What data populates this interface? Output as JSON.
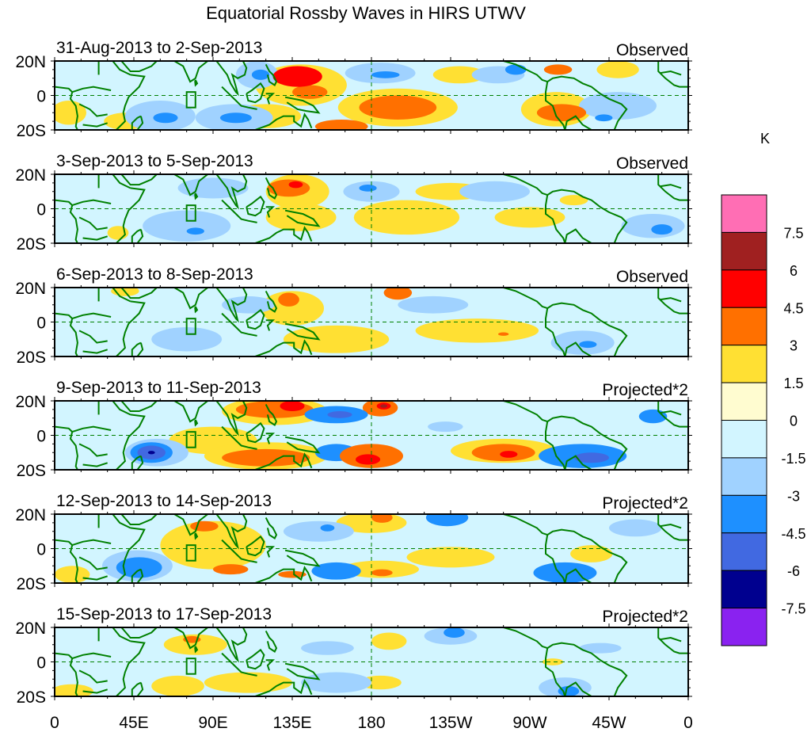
{
  "chart_data": {
    "type": "heatmap",
    "title": "Equatorial Rossby Waves in HIRS UTWV",
    "units_label": "K",
    "x_axis": {
      "range": [
        0,
        360
      ],
      "tick_values": [
        0,
        45,
        90,
        135,
        180,
        225,
        270,
        315,
        360
      ],
      "tick_labels": [
        "0",
        "45E",
        "90E",
        "135E",
        "180",
        "135W",
        "90W",
        "45W",
        "0"
      ]
    },
    "y_axis": {
      "range": [
        -20,
        20
      ],
      "tick_values": [
        20,
        0,
        -20
      ],
      "tick_labels": [
        "20N",
        "0",
        "20S"
      ]
    },
    "colorbar": {
      "levels": [
        -7.5,
        -6,
        -4.5,
        -3,
        -1.5,
        0,
        1.5,
        3,
        4.5,
        6,
        7.5
      ],
      "level_labels": [
        "7.5",
        "6",
        "4.5",
        "3",
        "1.5",
        "0",
        "-1.5",
        "-3",
        "-4.5",
        "-6",
        "-7.5"
      ],
      "colors_low_to_high": [
        "#8a22f0",
        "#00008f",
        "#4169e1",
        "#1e90ff",
        "#a0d2ff",
        "#d2f5ff",
        "#fffcd0",
        "#ffe033",
        "#ff7000",
        "#ff0000",
        "#a02020",
        "#ff6eb4"
      ]
    },
    "reference_box": {
      "lon": [
        75,
        80
      ],
      "lat": [
        -7,
        2
      ]
    },
    "map_outline_color": "#008000",
    "panels": [
      {
        "date_range": "31-Aug-2013 to 2-Sep-2013",
        "label": "Observed",
        "anomalies": [
          {
            "lon": 138,
            "lat": 11,
            "rx": 14,
            "ry": 6,
            "value": 4.5
          },
          {
            "lon": 145,
            "lat": 2,
            "rx": 10,
            "ry": 4,
            "value": 3.2
          },
          {
            "lon": 140,
            "lat": 6,
            "rx": 26,
            "ry": 12,
            "value": 1.8
          },
          {
            "lon": 163,
            "lat": -18,
            "rx": 15,
            "ry": 4,
            "value": 3.2
          },
          {
            "lon": 120,
            "lat": -12,
            "rx": 20,
            "ry": 7,
            "value": 1.7
          },
          {
            "lon": 195,
            "lat": -7,
            "rx": 22,
            "ry": 7,
            "value": 3.3
          },
          {
            "lon": 195,
            "lat": -7,
            "rx": 34,
            "ry": 11,
            "value": 1.7
          },
          {
            "lon": 230,
            "lat": 12,
            "rx": 15,
            "ry": 5,
            "value": 1.8
          },
          {
            "lon": 288,
            "lat": -10,
            "rx": 14,
            "ry": 5,
            "value": 3.3
          },
          {
            "lon": 285,
            "lat": -8,
            "rx": 20,
            "ry": 10,
            "value": 1.7
          },
          {
            "lon": 286,
            "lat": 15,
            "rx": 8,
            "ry": 3,
            "value": 3.2
          },
          {
            "lon": 320,
            "lat": 15,
            "rx": 12,
            "ry": 5,
            "value": 1.8
          },
          {
            "lon": 8,
            "lat": -10,
            "rx": 10,
            "ry": 7,
            "value": 1.7
          },
          {
            "lon": 40,
            "lat": -15,
            "rx": 12,
            "ry": 5,
            "value": 1.7
          },
          {
            "lon": 60,
            "lat": -12,
            "rx": 20,
            "ry": 9,
            "value": -1.8
          },
          {
            "lon": 63,
            "lat": -13,
            "rx": 7,
            "ry": 3,
            "value": -3.3
          },
          {
            "lon": 102,
            "lat": -13,
            "rx": 22,
            "ry": 8,
            "value": -1.8
          },
          {
            "lon": 103,
            "lat": -13,
            "rx": 9,
            "ry": 3,
            "value": -3.3
          },
          {
            "lon": 115,
            "lat": 12,
            "rx": 12,
            "ry": 8,
            "value": -1.8
          },
          {
            "lon": 117,
            "lat": 12,
            "rx": 5,
            "ry": 3,
            "value": -3.2
          },
          {
            "lon": 185,
            "lat": 13,
            "rx": 20,
            "ry": 6,
            "value": -1.8
          },
          {
            "lon": 188,
            "lat": 12,
            "rx": 8,
            "ry": 2,
            "value": -3.2
          },
          {
            "lon": 252,
            "lat": 12,
            "rx": 15,
            "ry": 5,
            "value": -1.8
          },
          {
            "lon": 262,
            "lat": 15,
            "rx": 6,
            "ry": 3,
            "value": -3.2
          },
          {
            "lon": 320,
            "lat": -6,
            "rx": 22,
            "ry": 8,
            "value": -1.8
          },
          {
            "lon": 312,
            "lat": -13,
            "rx": 5,
            "ry": 2,
            "value": -3.2
          }
        ]
      },
      {
        "date_range": "3-Sep-2013 to 5-Sep-2013",
        "label": "Observed",
        "anomalies": [
          {
            "lon": 138,
            "lat": 10,
            "rx": 18,
            "ry": 10,
            "value": 1.8
          },
          {
            "lon": 133,
            "lat": 12,
            "rx": 12,
            "ry": 5,
            "value": 3.3
          },
          {
            "lon": 137,
            "lat": 14,
            "rx": 4,
            "ry": 2,
            "value": 4.6
          },
          {
            "lon": 140,
            "lat": -5,
            "rx": 20,
            "ry": 8,
            "value": 1.7
          },
          {
            "lon": 200,
            "lat": -5,
            "rx": 30,
            "ry": 10,
            "value": 1.7
          },
          {
            "lon": 225,
            "lat": 10,
            "rx": 20,
            "ry": 5,
            "value": 1.7
          },
          {
            "lon": 270,
            "lat": -5,
            "rx": 20,
            "ry": 6,
            "value": 1.7
          },
          {
            "lon": 295,
            "lat": 5,
            "rx": 8,
            "ry": 3,
            "value": 1.7
          },
          {
            "lon": 36,
            "lat": -14,
            "rx": 6,
            "ry": 4,
            "value": 1.7
          },
          {
            "lon": 75,
            "lat": -10,
            "rx": 25,
            "ry": 9,
            "value": -1.8
          },
          {
            "lon": 80,
            "lat": -13,
            "rx": 5,
            "ry": 2,
            "value": -3.2
          },
          {
            "lon": 90,
            "lat": 12,
            "rx": 20,
            "ry": 6,
            "value": -1.8
          },
          {
            "lon": 180,
            "lat": 10,
            "rx": 16,
            "ry": 6,
            "value": -1.8
          },
          {
            "lon": 178,
            "lat": 12,
            "rx": 5,
            "ry": 2,
            "value": -3.2
          },
          {
            "lon": 250,
            "lat": 10,
            "rx": 20,
            "ry": 6,
            "value": -1.8
          },
          {
            "lon": 340,
            "lat": -10,
            "rx": 18,
            "ry": 7,
            "value": -1.8
          },
          {
            "lon": 345,
            "lat": -12,
            "rx": 6,
            "ry": 3,
            "value": -3.2
          }
        ]
      },
      {
        "date_range": "6-Sep-2013 to 8-Sep-2013",
        "label": "Observed",
        "anomalies": [
          {
            "lon": 135,
            "lat": 8,
            "rx": 18,
            "ry": 10,
            "value": 1.8
          },
          {
            "lon": 133,
            "lat": 13,
            "rx": 6,
            "ry": 4,
            "value": 3.2
          },
          {
            "lon": 195,
            "lat": 17,
            "rx": 8,
            "ry": 4,
            "value": 3.2
          },
          {
            "lon": 160,
            "lat": -10,
            "rx": 30,
            "ry": 8,
            "value": 1.7
          },
          {
            "lon": 240,
            "lat": -5,
            "rx": 35,
            "ry": 7,
            "value": 1.7
          },
          {
            "lon": 255,
            "lat": -7,
            "rx": 3,
            "ry": 1,
            "value": 3.2
          },
          {
            "lon": 40,
            "lat": 18,
            "rx": 8,
            "ry": 3,
            "value": 1.7
          },
          {
            "lon": 75,
            "lat": -10,
            "rx": 20,
            "ry": 7,
            "value": -1.8
          },
          {
            "lon": 110,
            "lat": 10,
            "rx": 15,
            "ry": 5,
            "value": -1.8
          },
          {
            "lon": 215,
            "lat": 10,
            "rx": 20,
            "ry": 5,
            "value": -1.8
          },
          {
            "lon": 300,
            "lat": -12,
            "rx": 18,
            "ry": 7,
            "value": -1.8
          },
          {
            "lon": 303,
            "lat": -13,
            "rx": 5,
            "ry": 2,
            "value": -3.2
          }
        ]
      },
      {
        "date_range": "9-Sep-2013 to 11-Sep-2013",
        "label": "Projected*2",
        "anomalies": [
          {
            "lon": 125,
            "lat": 14,
            "rx": 30,
            "ry": 8,
            "value": 1.8
          },
          {
            "lon": 125,
            "lat": 15,
            "rx": 22,
            "ry": 5,
            "value": 3.3
          },
          {
            "lon": 135,
            "lat": 17,
            "rx": 7,
            "ry": 3,
            "value": 4.6
          },
          {
            "lon": 120,
            "lat": -12,
            "rx": 35,
            "ry": 8,
            "value": 1.8
          },
          {
            "lon": 120,
            "lat": -13,
            "rx": 25,
            "ry": 5,
            "value": 3.3
          },
          {
            "lon": 185,
            "lat": 16,
            "rx": 10,
            "ry": 5,
            "value": 3.3
          },
          {
            "lon": 187,
            "lat": 17,
            "rx": 4,
            "ry": 2,
            "value": 4.6
          },
          {
            "lon": 187,
            "lat": 17,
            "rx": 2,
            "ry": 1,
            "value": 6.2
          },
          {
            "lon": 180,
            "lat": -12,
            "rx": 18,
            "ry": 7,
            "value": 3.3
          },
          {
            "lon": 178,
            "lat": -14,
            "rx": 7,
            "ry": 3,
            "value": 4.6
          },
          {
            "lon": 255,
            "lat": -9,
            "rx": 30,
            "ry": 7,
            "value": 1.8
          },
          {
            "lon": 255,
            "lat": -10,
            "rx": 18,
            "ry": 5,
            "value": 3.3
          },
          {
            "lon": 258,
            "lat": -11,
            "rx": 5,
            "ry": 2,
            "value": 4.6
          },
          {
            "lon": 90,
            "lat": -3,
            "rx": 25,
            "ry": 8,
            "value": 1.7
          },
          {
            "lon": 58,
            "lat": -10,
            "rx": 18,
            "ry": 8,
            "value": -1.8
          },
          {
            "lon": 55,
            "lat": -10,
            "rx": 12,
            "ry": 6,
            "value": -3.3
          },
          {
            "lon": 55,
            "lat": -10,
            "rx": 8,
            "ry": 4,
            "value": -4.7
          },
          {
            "lon": 55,
            "lat": -10,
            "rx": 2,
            "ry": 1,
            "value": -6.2
          },
          {
            "lon": 160,
            "lat": -10,
            "rx": 12,
            "ry": 5,
            "value": -3.2
          },
          {
            "lon": 160,
            "lat": 12,
            "rx": 18,
            "ry": 5,
            "value": -3.3
          },
          {
            "lon": 162,
            "lat": 12,
            "rx": 7,
            "ry": 2,
            "value": -4.6
          },
          {
            "lon": 222,
            "lat": 5,
            "rx": 10,
            "ry": 3,
            "value": -1.8
          },
          {
            "lon": 300,
            "lat": -12,
            "rx": 25,
            "ry": 7,
            "value": -3.2
          },
          {
            "lon": 305,
            "lat": -13,
            "rx": 10,
            "ry": 3,
            "value": -4.7
          },
          {
            "lon": 340,
            "lat": 11,
            "rx": 8,
            "ry": 4,
            "value": -3.2
          }
        ]
      },
      {
        "date_range": "12-Sep-2013 to 14-Sep-2013",
        "label": "Projected*2",
        "anomalies": [
          {
            "lon": 90,
            "lat": 2,
            "rx": 30,
            "ry": 14,
            "value": 1.7
          },
          {
            "lon": 85,
            "lat": 13,
            "rx": 8,
            "ry": 3,
            "value": 3.2
          },
          {
            "lon": 100,
            "lat": -12,
            "rx": 10,
            "ry": 3,
            "value": 3.2
          },
          {
            "lon": 135,
            "lat": -15,
            "rx": 8,
            "ry": 2,
            "value": 3.2
          },
          {
            "lon": 180,
            "lat": 15,
            "rx": 20,
            "ry": 6,
            "value": 1.7
          },
          {
            "lon": 186,
            "lat": 18,
            "rx": 6,
            "ry": 3,
            "value": 3.2
          },
          {
            "lon": 185,
            "lat": -12,
            "rx": 22,
            "ry": 5,
            "value": 1.8
          },
          {
            "lon": 186,
            "lat": -14,
            "rx": 6,
            "ry": 2,
            "value": 3.2
          },
          {
            "lon": 225,
            "lat": -5,
            "rx": 25,
            "ry": 6,
            "value": 1.7
          },
          {
            "lon": 305,
            "lat": -3,
            "rx": 12,
            "ry": 5,
            "value": 1.7
          },
          {
            "lon": 10,
            "lat": -15,
            "rx": 10,
            "ry": 5,
            "value": 1.7
          },
          {
            "lon": 47,
            "lat": -10,
            "rx": 20,
            "ry": 9,
            "value": -1.8
          },
          {
            "lon": 48,
            "lat": -11,
            "rx": 13,
            "ry": 6,
            "value": -3.3
          },
          {
            "lon": 160,
            "lat": -13,
            "rx": 14,
            "ry": 5,
            "value": -3.2
          },
          {
            "lon": 150,
            "lat": 10,
            "rx": 20,
            "ry": 6,
            "value": -1.8
          },
          {
            "lon": 155,
            "lat": 12,
            "rx": 4,
            "ry": 2,
            "value": -3.2
          },
          {
            "lon": 223,
            "lat": 18,
            "rx": 12,
            "ry": 5,
            "value": -3.2
          },
          {
            "lon": 290,
            "lat": -14,
            "rx": 18,
            "ry": 6,
            "value": -3.3
          },
          {
            "lon": 330,
            "lat": 12,
            "rx": 15,
            "ry": 5,
            "value": -1.8
          }
        ]
      },
      {
        "date_range": "15-Sep-2013 to 17-Sep-2013",
        "label": "Projected*2",
        "anomalies": [
          {
            "lon": 80,
            "lat": 10,
            "rx": 18,
            "ry": 6,
            "value": 1.7
          },
          {
            "lon": 78,
            "lat": 13,
            "rx": 5,
            "ry": 2,
            "value": 3.2
          },
          {
            "lon": 110,
            "lat": -12,
            "rx": 25,
            "ry": 6,
            "value": 1.7
          },
          {
            "lon": 70,
            "lat": -14,
            "rx": 15,
            "ry": 6,
            "value": 1.7
          },
          {
            "lon": 190,
            "lat": 12,
            "rx": 10,
            "ry": 5,
            "value": 1.7
          },
          {
            "lon": 185,
            "lat": -12,
            "rx": 12,
            "ry": 4,
            "value": 1.7
          },
          {
            "lon": 283,
            "lat": 0,
            "rx": 6,
            "ry": 2,
            "value": 1.7
          },
          {
            "lon": 10,
            "lat": -17,
            "rx": 12,
            "ry": 4,
            "value": 1.7
          },
          {
            "lon": 160,
            "lat": -12,
            "rx": 20,
            "ry": 6,
            "value": -1.8
          },
          {
            "lon": 155,
            "lat": 8,
            "rx": 15,
            "ry": 4,
            "value": -1.8
          },
          {
            "lon": 225,
            "lat": 15,
            "rx": 15,
            "ry": 5,
            "value": -1.8
          },
          {
            "lon": 227,
            "lat": 17,
            "rx": 6,
            "ry": 3,
            "value": -3.2
          },
          {
            "lon": 290,
            "lat": -15,
            "rx": 15,
            "ry": 6,
            "value": -1.8
          },
          {
            "lon": 292,
            "lat": -17,
            "rx": 6,
            "ry": 3,
            "value": -3.2
          },
          {
            "lon": 310,
            "lat": 8,
            "rx": 12,
            "ry": 3,
            "value": -1.8
          }
        ]
      }
    ]
  }
}
